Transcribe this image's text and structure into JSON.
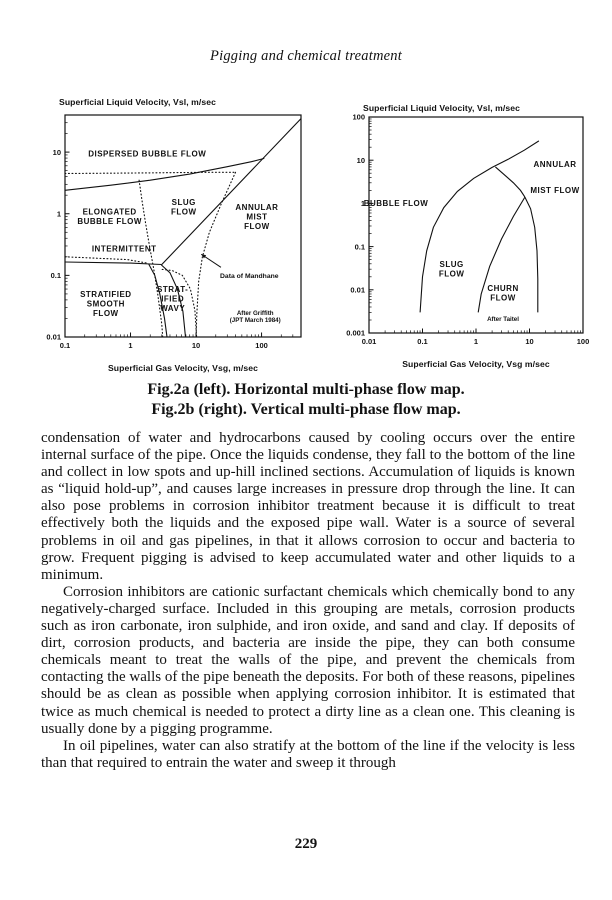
{
  "page": {
    "header": "Pigging and chemical treatment",
    "caption_line1": "Fig.2a (left). Horizontal multi-phase flow map.",
    "caption_line2": "Fig.2b (right). Vertical multi-phase flow map.",
    "page_number": "229",
    "paragraphs": [
      {
        "indent": false,
        "text": "condensation of water and hydrocarbons caused by cooling occurs over the entire internal surface of the pipe. Once the liquids condense, they fall to the bottom of the line and collect in low spots and up-hill inclined sections. Accumulation of liquids is known as “liquid hold-up”, and causes large increases in pressure drop through the line. It can also pose problems in corrosion inhibitor treatment because it is difficult to treat effectively both the liquids and the exposed pipe wall. Water is a source of several problems in oil and gas pipelines, in that it allows corrosion to occur and bacteria to grow. Frequent pigging is advised to keep accumulated water and other liquids to a minimum."
      },
      {
        "indent": true,
        "text": "Corrosion inhibitors are cationic surfactant chemicals which chemically bond to any negatively-charged surface. Included in this grouping are metals, corrosion products such as iron carbonate, iron sulphide, and iron oxide, and sand and clay. If deposits of dirt, corrosion products, and bacteria are inside the pipe, they can both consume chemicals meant to treat the walls of the pipe, and prevent the chemicals from contacting the walls of the pipe beneath the deposits. For both of these reasons, pipelines should be as clean as possible when applying corrosion inhibitor. It is estimated that twice as much chemical is needed to protect a dirty line as a clean one. This cleaning is usually done by a pigging programme."
      },
      {
        "indent": true,
        "text": "In oil pipelines, water can also stratify at the bottom of the line if the velocity is less than that required to entrain the water and sweep it through"
      }
    ]
  },
  "chart_data": [
    {
      "id": "fig2a-horizontal-flow-map",
      "type": "line",
      "title": "Superficial Liquid Velocity, Vsl, m/sec",
      "xlabel": "Superficial Gas Velocity, Vsg, m/sec",
      "xscale": "log",
      "yscale": "log",
      "xlim": [
        0.1,
        400
      ],
      "ylim": [
        0.01,
        40
      ],
      "xticks": [
        "0.1",
        "1",
        "10",
        "100"
      ],
      "yticks": [
        "10",
        "1",
        "0.1",
        "0.01"
      ],
      "boundaries": [
        {
          "name": "dispersed-bubble-lower",
          "style": "solid",
          "points": [
            [
              0.1,
              2.4
            ],
            [
              0.5,
              2.9
            ],
            [
              2,
              3.5
            ],
            [
              8,
              4.4
            ],
            [
              30,
              5.8
            ],
            [
              70,
              7.0
            ],
            [
              110,
              7.9
            ]
          ]
        },
        {
          "name": "upper-dotted",
          "style": "dotted",
          "points": [
            [
              0.1,
              4.5
            ],
            [
              2,
              4.6
            ],
            [
              15,
              4.7
            ],
            [
              40,
              4.7
            ]
          ]
        },
        {
          "name": "annular-diagonal",
          "style": "solid",
          "points": [
            [
              3,
              0.15
            ],
            [
              400,
              35
            ]
          ]
        },
        {
          "name": "slug-left-dotted",
          "style": "dotted",
          "points": [
            [
              1.35,
              3.5
            ],
            [
              1.5,
              1.6
            ],
            [
              1.7,
              0.7
            ],
            [
              1.95,
              0.3
            ],
            [
              2.25,
              0.13
            ],
            [
              2.6,
              0.05
            ],
            [
              3.0,
              0.016
            ],
            [
              3.1,
              0.01
            ]
          ]
        },
        {
          "name": "stratified-top",
          "style": "solid",
          "points": [
            [
              0.1,
              0.165
            ],
            [
              1.0,
              0.158
            ],
            [
              2.0,
              0.153
            ],
            [
              3.0,
              0.15
            ]
          ]
        },
        {
          "name": "stratified-top-dotted",
          "style": "dotted",
          "points": [
            [
              0.1,
              0.2
            ],
            [
              0.9,
              0.18
            ],
            [
              1.8,
              0.158
            ]
          ]
        },
        {
          "name": "wavy-left",
          "style": "solid",
          "points": [
            [
              1.9,
              0.152
            ],
            [
              2.35,
              0.1
            ],
            [
              2.8,
              0.05
            ],
            [
              3.3,
              0.02
            ],
            [
              3.6,
              0.01
            ]
          ]
        },
        {
          "name": "wavy-right",
          "style": "solid",
          "points": [
            [
              2.95,
              0.148
            ],
            [
              4.0,
              0.11
            ],
            [
              5.2,
              0.06
            ],
            [
              6.3,
              0.026
            ],
            [
              6.9,
              0.01
            ]
          ]
        },
        {
          "name": "wavy-dotted",
          "style": "dotted",
          "points": [
            [
              3.05,
              0.125
            ],
            [
              4.3,
              0.12
            ],
            [
              6.2,
              0.1
            ],
            [
              8.2,
              0.06
            ],
            [
              9.6,
              0.027
            ],
            [
              10.2,
              0.01
            ]
          ]
        },
        {
          "name": "mandhane-dotted",
          "style": "dotted",
          "points": [
            [
              40,
              4.7
            ],
            [
              24,
              1.4
            ],
            [
              16,
              0.5
            ],
            [
              12.5,
              0.2
            ],
            [
              11,
              0.08
            ],
            [
              10.3,
              0.025
            ],
            [
              10,
              0.01
            ]
          ]
        }
      ],
      "labels": [
        {
          "text": "DISPERSED BUBBLE FLOW",
          "x": 1.8,
          "y": 9.5
        },
        {
          "text": "SLUG\nFLOW",
          "x": 6.5,
          "y": 1.3
        },
        {
          "text": "ELONGATED\nBUBBLE FLOW",
          "x": 0.48,
          "y": 0.9
        },
        {
          "text": "ANNULAR\nMIST\nFLOW",
          "x": 85,
          "y": 0.9
        },
        {
          "text": "INTERMITTENT",
          "x": 0.8,
          "y": 0.27
        },
        {
          "text": "STRATIFIED\nSMOOTH\nFLOW",
          "x": 0.42,
          "y": 0.035
        },
        {
          "text": "STRAT-\nIFIED\nWAVY",
          "x": 4.4,
          "y": 0.042
        },
        {
          "text": "After Griffith\n(JPT March 1984)",
          "x": 80,
          "y": 0.022,
          "small": true
        }
      ],
      "annotations": [
        {
          "text": "Data of Mandhane",
          "x": 65,
          "y": 0.1,
          "arrow_from": [
            24,
            0.135
          ],
          "arrow_to": [
            12,
            0.22
          ]
        }
      ]
    },
    {
      "id": "fig2b-vertical-flow-map",
      "type": "line",
      "title": "Superficial Liquid Velocity, Vsl, m/sec",
      "xlabel": "Superficial Gas Velocity, Vsg m/sec",
      "xscale": "log",
      "yscale": "log",
      "xlim": [
        0.01,
        100
      ],
      "ylim": [
        0.001,
        100
      ],
      "xticks": [
        "0.01",
        "0.1",
        "1",
        "10",
        "100"
      ],
      "yticks": [
        "100",
        "10",
        "1",
        "0.1",
        "0.01",
        "0.001"
      ],
      "boundaries": [
        {
          "name": "bubble-slug",
          "style": "solid",
          "points": [
            [
              0.09,
              0.003
            ],
            [
              0.1,
              0.02
            ],
            [
              0.12,
              0.08
            ],
            [
              0.16,
              0.28
            ],
            [
              0.25,
              0.8
            ],
            [
              0.45,
              1.9
            ],
            [
              0.9,
              3.8
            ],
            [
              2,
              6.8
            ],
            [
              4,
              10.5
            ],
            [
              8,
              17
            ],
            [
              15,
              28
            ]
          ]
        },
        {
          "name": "annular-mist-divider",
          "style": "solid",
          "points": [
            [
              2.3,
              7
            ],
            [
              3.4,
              4.6
            ],
            [
              5,
              3
            ],
            [
              6.8,
              2
            ],
            [
              8.2,
              1.4
            ]
          ]
        },
        {
          "name": "slug-churn",
          "style": "solid",
          "points": [
            [
              8.2,
              1.4
            ],
            [
              5,
              0.5
            ],
            [
              3,
              0.15
            ],
            [
              1.8,
              0.035
            ],
            [
              1.25,
              0.008
            ],
            [
              1.1,
              0.003
            ]
          ]
        },
        {
          "name": "churn-right",
          "style": "solid",
          "points": [
            [
              8.2,
              1.4
            ],
            [
              10.5,
              0.75
            ],
            [
              12.5,
              0.28
            ],
            [
              13.8,
              0.08
            ],
            [
              14.3,
              0.018
            ],
            [
              14.3,
              0.003
            ]
          ]
        }
      ],
      "labels": [
        {
          "text": "ANNULAR",
          "x": 30,
          "y": 8
        },
        {
          "text": "MIST FLOW",
          "x": 30,
          "y": 2
        },
        {
          "text": "BUBBLE FLOW",
          "x": 0.032,
          "y": 1.0
        },
        {
          "text": "SLUG\nFLOW",
          "x": 0.35,
          "y": 0.03
        },
        {
          "text": "CHURN\nFLOW",
          "x": 3.2,
          "y": 0.0085
        },
        {
          "text": "After Taitel",
          "x": 3.2,
          "y": 0.0022,
          "small": true
        }
      ],
      "annotations": []
    }
  ]
}
